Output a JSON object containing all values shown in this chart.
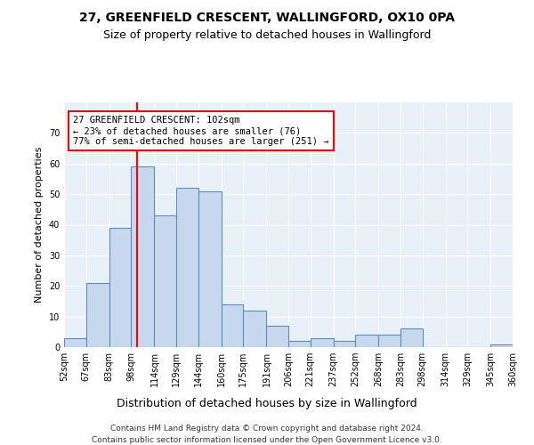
{
  "title1": "27, GREENFIELD CRESCENT, WALLINGFORD, OX10 0PA",
  "title2": "Size of property relative to detached houses in Wallingford",
  "xlabel": "Distribution of detached houses by size in Wallingford",
  "ylabel": "Number of detached properties",
  "bar_values": [
    3,
    21,
    39,
    59,
    43,
    52,
    51,
    14,
    12,
    7,
    2,
    3,
    2,
    4,
    4,
    6,
    0,
    0,
    0,
    1
  ],
  "bin_edges": [
    52,
    67,
    83,
    98,
    114,
    129,
    144,
    160,
    175,
    191,
    206,
    221,
    237,
    252,
    268,
    283,
    298,
    314,
    329,
    345,
    360
  ],
  "tick_labels": [
    "52sqm",
    "67sqm",
    "83sqm",
    "98sqm",
    "114sqm",
    "129sqm",
    "144sqm",
    "160sqm",
    "175sqm",
    "191sqm",
    "206sqm",
    "221sqm",
    "237sqm",
    "252sqm",
    "268sqm",
    "283sqm",
    "298sqm",
    "314sqm",
    "329sqm",
    "345sqm",
    "360sqm"
  ],
  "bar_color": "#c9d9ed",
  "bar_edge_color": "#5a8fc3",
  "reference_line_x": 102,
  "reference_line_color": "red",
  "annotation_text": "27 GREENFIELD CRESCENT: 102sqm\n← 23% of detached houses are smaller (76)\n77% of semi-detached houses are larger (251) →",
  "annotation_box_color": "white",
  "annotation_box_edge": "red",
  "ylim": [
    0,
    80
  ],
  "yticks": [
    0,
    10,
    20,
    30,
    40,
    50,
    60,
    70,
    80
  ],
  "background_color": "#e8f0f8",
  "footer1": "Contains HM Land Registry data © Crown copyright and database right 2024.",
  "footer2": "Contains public sector information licensed under the Open Government Licence v3.0."
}
